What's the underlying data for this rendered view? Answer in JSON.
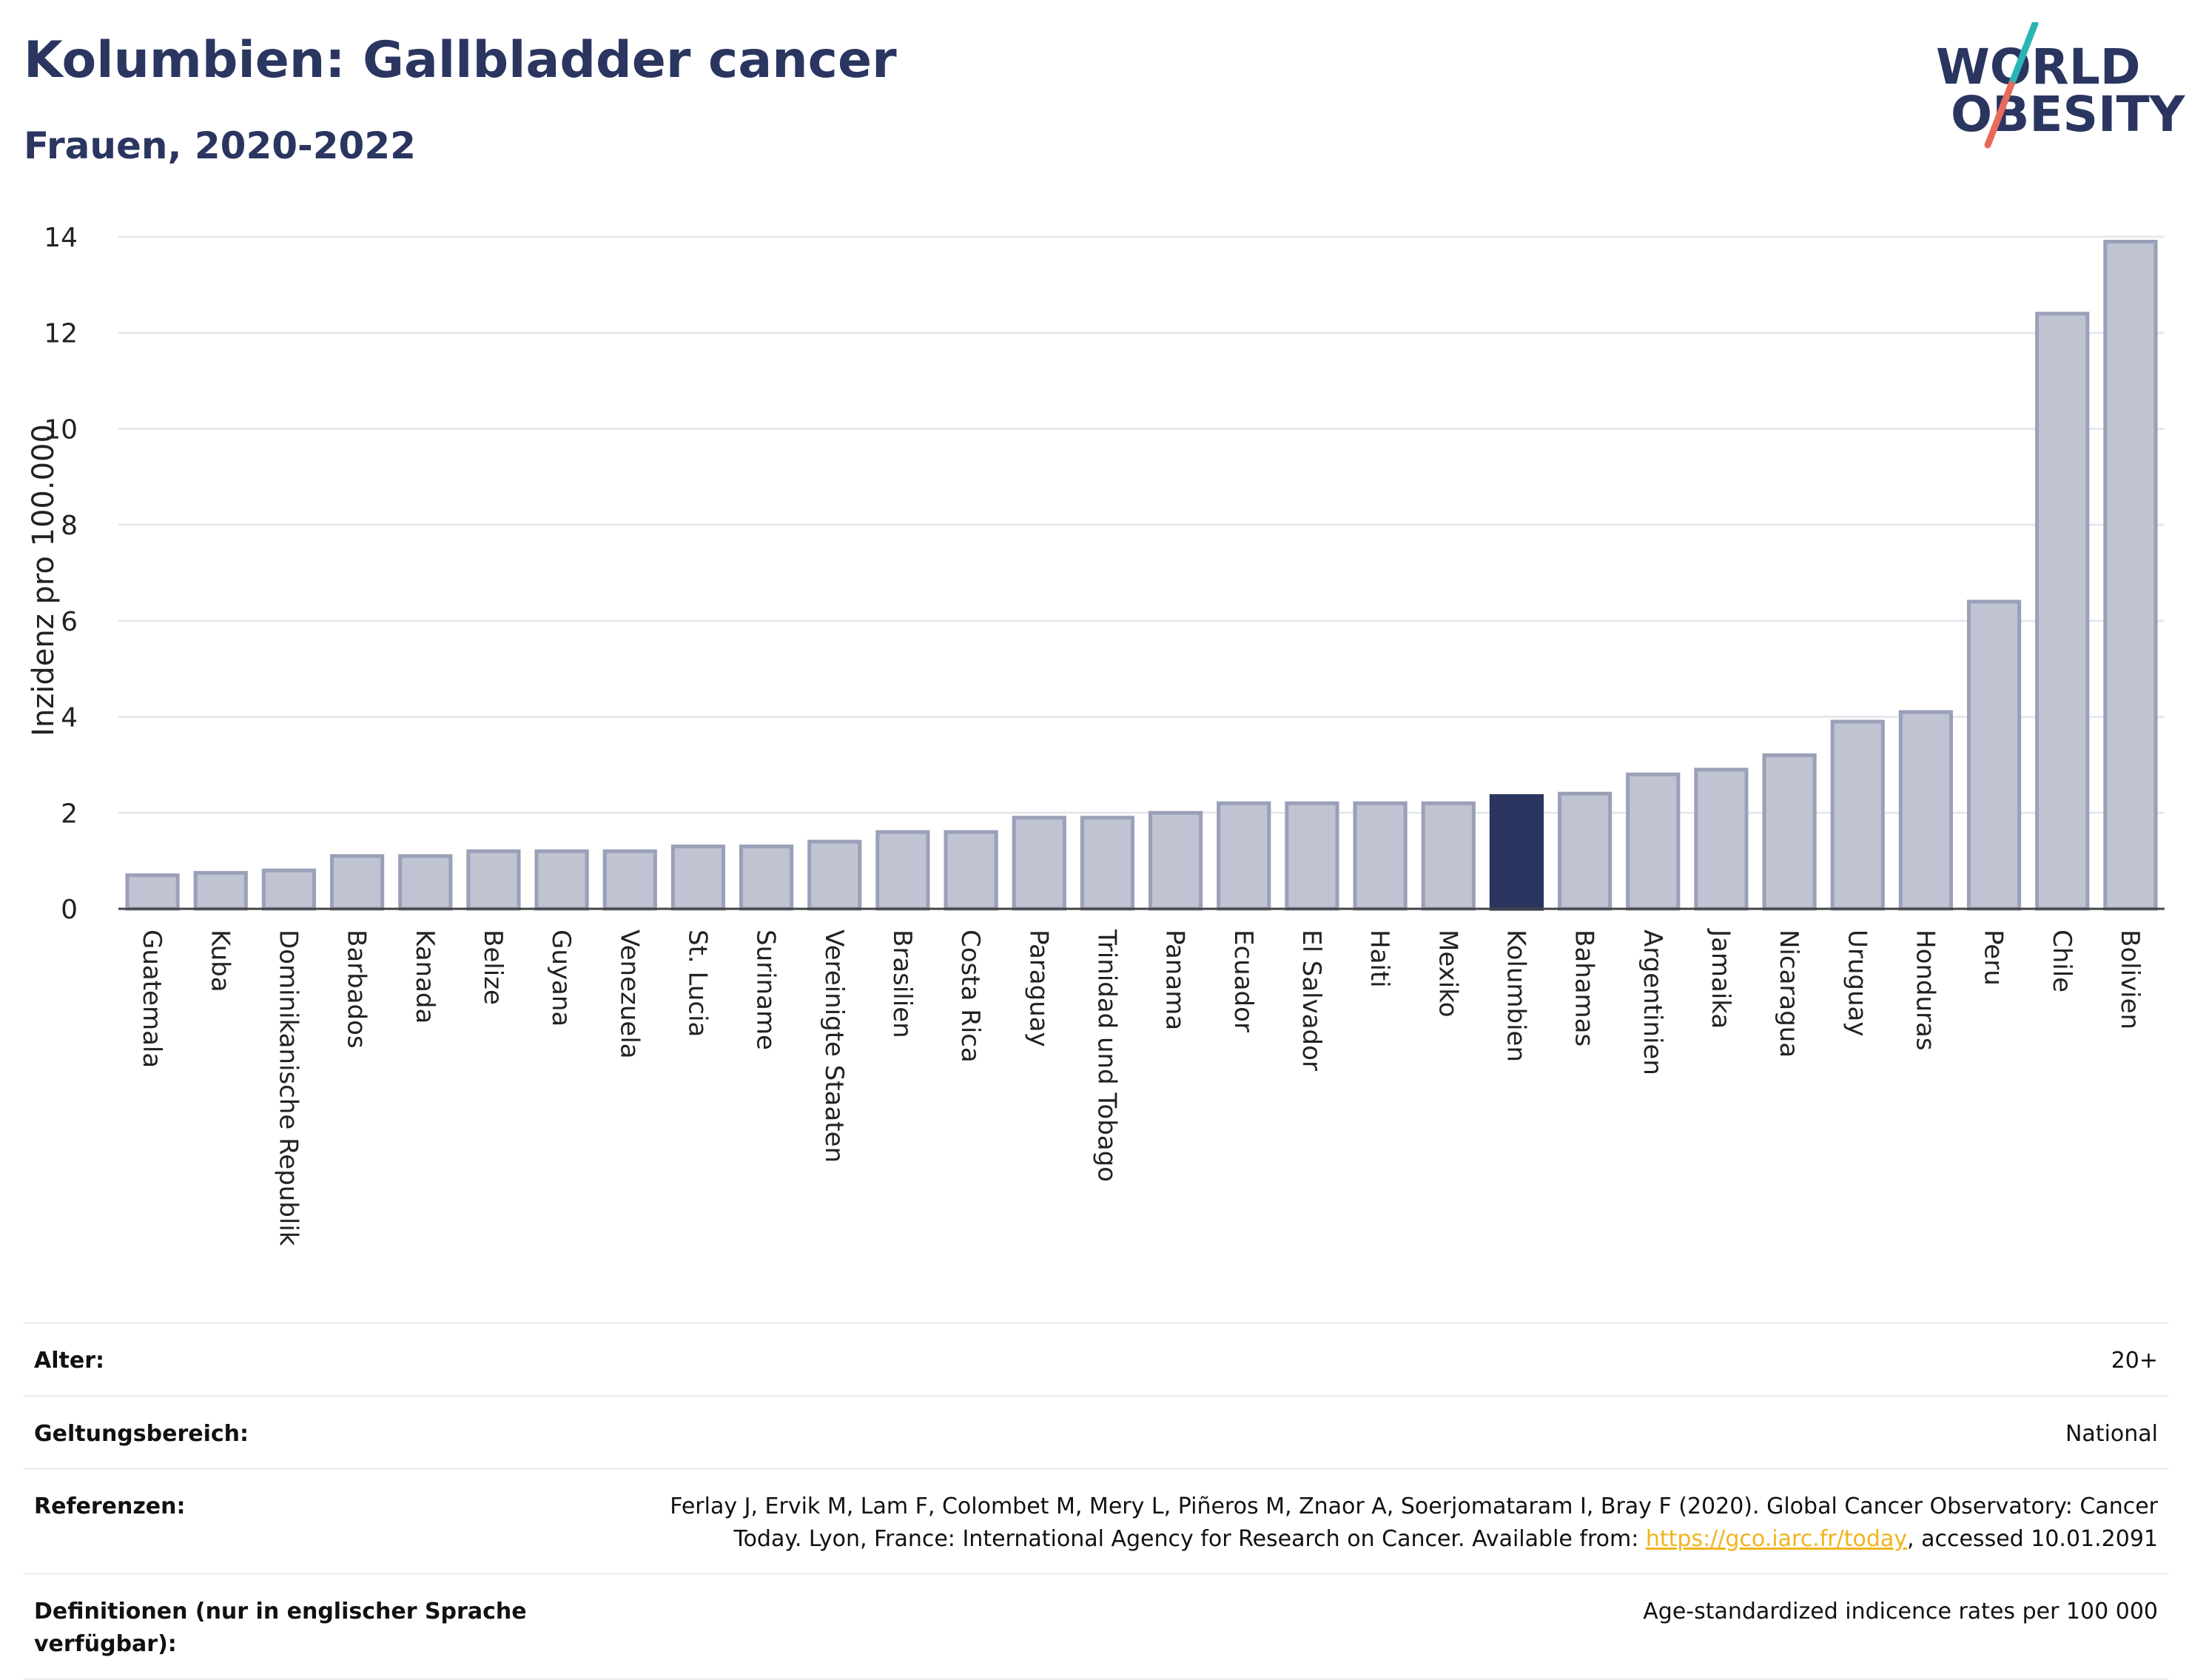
{
  "header": {
    "title": "Kolumbien: Gallbladder cancer",
    "subtitle": "Frauen, 2020-2022"
  },
  "logo": {
    "line1": "WORLD",
    "line2": "OBESITY",
    "colors": {
      "text": "#2a3560",
      "slash_top": "#2ab5b5",
      "slash_bottom": "#e86a5a"
    }
  },
  "colors": {
    "bar_fill": "#bfc3d2",
    "bar_stroke": "#9aa0b8",
    "highlight": "#2a3560",
    "grid": "#e6e8ee"
  },
  "chart_data": {
    "type": "bar",
    "ylabel": "Inzidenz pro 100.000",
    "ylim": [
      0,
      14
    ],
    "yticks": [
      0,
      2,
      4,
      6,
      8,
      10,
      12,
      14
    ],
    "grid": true,
    "highlight": "Kolumbien",
    "categories": [
      "Guatemala",
      "Kuba",
      "Dominikanische Republik",
      "Barbados",
      "Kanada",
      "Belize",
      "Guyana",
      "Venezuela",
      "St. Lucia",
      "Suriname",
      "Vereinigte Staaten",
      "Brasilien",
      "Costa Rica",
      "Paraguay",
      "Trinidad und Tobago",
      "Panama",
      "Ecuador",
      "El Salvador",
      "Haiti",
      "Mexiko",
      "Kolumbien",
      "Bahamas",
      "Argentinien",
      "Jamaika",
      "Nicaragua",
      "Uruguay",
      "Honduras",
      "Peru",
      "Chile",
      "Bolivien"
    ],
    "values": [
      0.7,
      0.75,
      0.8,
      1.1,
      1.1,
      1.2,
      1.2,
      1.2,
      1.3,
      1.3,
      1.4,
      1.6,
      1.6,
      1.9,
      1.9,
      2.0,
      2.2,
      2.2,
      2.2,
      2.2,
      2.35,
      2.4,
      2.8,
      2.9,
      3.2,
      3.9,
      4.1,
      6.4,
      12.4,
      13.9
    ]
  },
  "info": [
    {
      "label": "Alter:",
      "value": "20+"
    },
    {
      "label": "Geltungsbereich:",
      "value": "National"
    },
    {
      "label": "Referenzen:",
      "value_line1": "Ferlay J, Ervik M, Lam F, Colombet M, Mery L, Piñeros M, Znaor A, Soerjomataram I, Bray F (2020). Global Cancer Observatory: Cancer",
      "value_line2_pre": "Today. Lyon, France: International Agency for Research on Cancer. Available from: ",
      "link": "https://gco.iarc.fr/today",
      "value_line2_post": ", accessed 10.01.2091"
    },
    {
      "label": "Definitionen (nur in englischer Sprache verfügbar):",
      "value": "Age-standardized indicence rates per 100 000"
    }
  ]
}
